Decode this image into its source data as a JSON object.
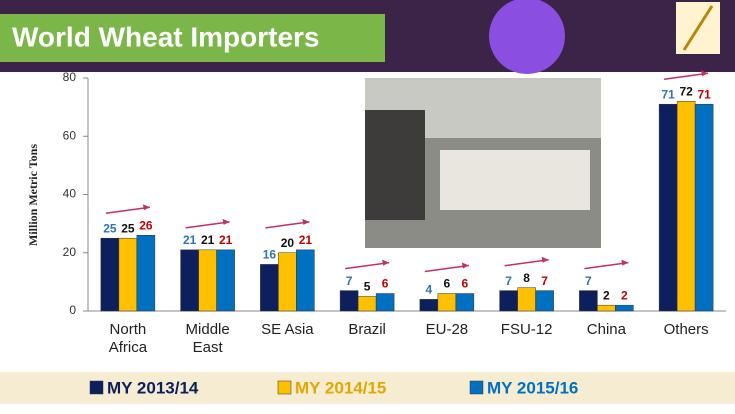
{
  "chart_data": {
    "type": "bar",
    "title": "World Wheat Importers",
    "y_label": "Million Metric Tons",
    "categories": [
      "North Africa",
      "Middle East",
      "SE Asia",
      "Brazil",
      "EU-28",
      "FSU-12",
      "China",
      "Others"
    ],
    "series": [
      {
        "name": "MY 2013/14",
        "color": "#0d1f5c",
        "label_color": "#2e74b5",
        "values": [
          25,
          21,
          16,
          7,
          4,
          7,
          7,
          71
        ]
      },
      {
        "name": "MY 2014/15",
        "color": "#ffc000",
        "label_color": "#111111",
        "values": [
          25,
          21,
          20,
          5,
          6,
          8,
          2,
          72
        ]
      },
      {
        "name": "MY 2015/16",
        "color": "#0070c0",
        "label_color": "#c00000",
        "values": [
          26,
          21,
          21,
          6,
          6,
          7,
          2,
          71
        ]
      }
    ],
    "ylim": [
      0,
      80
    ],
    "yticks": [
      0,
      20,
      40,
      60,
      80
    ],
    "grid": false
  }
}
